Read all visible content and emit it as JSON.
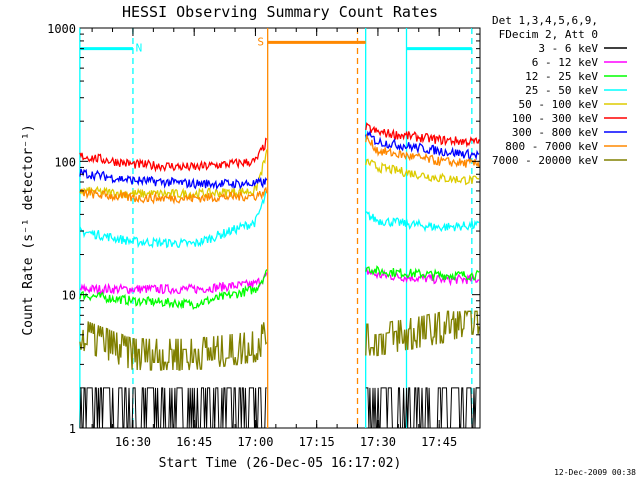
{
  "chart_data": {
    "type": "line",
    "title": "HESSI Observing Summary Count Rates",
    "xlabel": "Start Time (26-Dec-05 16:17:02)",
    "ylabel": "Count Rate (s⁻¹ detector⁻¹)",
    "yscale": "log",
    "ylim": [
      1,
      1000
    ],
    "xlim": [
      "16:17:02",
      "17:55:00"
    ],
    "x_tick_labels": [
      "16:30",
      "16:45",
      "17:00",
      "17:15",
      "17:30",
      "17:45"
    ],
    "y_tick_labels": [
      "1",
      "10",
      "100",
      "1000"
    ],
    "grid": false,
    "legend_position": "right",
    "legend_header": [
      "Det 1,3,4,5,6,9,",
      "FDecim 2, Att 0"
    ],
    "footer_timestamp": "12-Dec-2009 00:38",
    "x": [
      "16:17",
      "16:30",
      "16:45",
      "17:00",
      "17:03",
      "17:27",
      "17:30",
      "17:45",
      "17:53"
    ],
    "series": [
      {
        "name": "3 - 6 keV",
        "color": "#000000",
        "values": [
          1.5,
          1.5,
          1.5,
          1.5,
          1.5,
          1.5,
          1.5,
          1.5,
          1.5
        ]
      },
      {
        "name": "6 - 12 keV",
        "color": "#ff00ff",
        "values": [
          11,
          11,
          11,
          12,
          14,
          15,
          14,
          13,
          13
        ]
      },
      {
        "name": "12 - 25 keV",
        "color": "#00ff00",
        "values": [
          10,
          9,
          8.5,
          11,
          15,
          16,
          15,
          14,
          14
        ]
      },
      {
        "name": "25 - 50 keV",
        "color": "#00ffff",
        "values": [
          30,
          25,
          24,
          35,
          60,
          40,
          36,
          32,
          33
        ]
      },
      {
        "name": "50 - 100 keV",
        "color": "#ddcc00",
        "values": [
          60,
          57,
          57,
          60,
          120,
          100,
          90,
          75,
          72
        ]
      },
      {
        "name": "100 - 300 keV",
        "color": "#ff0000",
        "values": [
          110,
          95,
          90,
          100,
          145,
          180,
          165,
          145,
          140
        ]
      },
      {
        "name": "300 - 800 keV",
        "color": "#0000ff",
        "values": [
          82,
          72,
          68,
          68,
          70,
          160,
          140,
          120,
          112
        ]
      },
      {
        "name": "800 - 7000 keV",
        "color": "#ff8800",
        "values": [
          58,
          53,
          53,
          55,
          60,
          150,
          120,
          100,
          96
        ]
      },
      {
        "name": "7000 - 20000 keV",
        "color": "#808000",
        "values": [
          5,
          3.5,
          3.5,
          4,
          5,
          4.5,
          4.5,
          5.5,
          6.5
        ]
      }
    ],
    "annotations": [
      {
        "text": "N",
        "color": "#00ffff",
        "x_start": "16:17",
        "x_end": "16:30",
        "level": 700
      },
      {
        "text": "S",
        "color": "#ff8800",
        "x_start": "17:03",
        "x_end": "17:27",
        "level": 780
      },
      {
        "text": "",
        "color": "#00ffff",
        "x_start": "17:37",
        "x_end": "17:53",
        "level": 700
      }
    ],
    "gaps": [
      [
        "17:03",
        "17:27"
      ]
    ],
    "vertical_markers": [
      {
        "x": "16:17",
        "color": "#00ffff",
        "style": "solid"
      },
      {
        "x": "16:30",
        "color": "#00ffff",
        "style": "dashed"
      },
      {
        "x": "17:03",
        "color": "#ff8800",
        "style": "solid"
      },
      {
        "x": "17:25",
        "color": "#ff8800",
        "style": "dashed"
      },
      {
        "x": "17:27",
        "color": "#00ffff",
        "style": "solid"
      },
      {
        "x": "17:37",
        "color": "#00ffff",
        "style": "solid"
      },
      {
        "x": "17:53",
        "color": "#00ffff",
        "style": "dashed"
      }
    ]
  }
}
